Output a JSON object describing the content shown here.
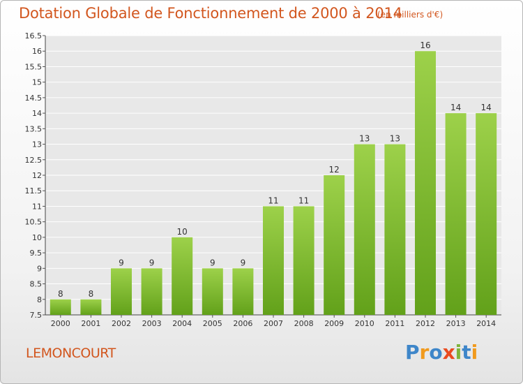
{
  "header": {
    "title": "Dotation Globale de Fonctionnement de 2000 à 2014",
    "unit": "(en milliers d'€)"
  },
  "footer": {
    "commune": "LEMONCOURT",
    "brand": "Proxiti"
  },
  "colors": {
    "title": "#d2561e",
    "bar_light": "#9dd14a",
    "bar_dark": "#62a11a",
    "brand_letters": [
      "#3e86c9",
      "#f19a1d",
      "#3e86c9",
      "#ea4a1f",
      "#7eb43a",
      "#3e86c9",
      "#f19a1d"
    ]
  },
  "chart_data": {
    "type": "bar",
    "categories": [
      "2000",
      "2001",
      "2002",
      "2003",
      "2004",
      "2005",
      "2006",
      "2007",
      "2008",
      "2009",
      "2010",
      "2011",
      "2012",
      "2013",
      "2014"
    ],
    "values": [
      8,
      8,
      9,
      9,
      10,
      9,
      9,
      11,
      11,
      12,
      13,
      13,
      16,
      14,
      14
    ],
    "data_labels": [
      "8",
      "8",
      "9",
      "9",
      "10",
      "9",
      "9",
      "11",
      "11",
      "12",
      "13",
      "13",
      "16",
      "14",
      "14"
    ],
    "ylim": [
      7.5,
      16.5
    ],
    "yticks": [
      7.5,
      8,
      8.5,
      9,
      9.5,
      10,
      10.5,
      11,
      11.5,
      12,
      12.5,
      13,
      13.5,
      14,
      14.5,
      15,
      15.5,
      16,
      16.5
    ],
    "ytick_labels": [
      "7.5",
      "8",
      "8.5",
      "9",
      "9.5",
      "10",
      "10.5",
      "11",
      "11.5",
      "12",
      "12.5",
      "13",
      "13.5",
      "14",
      "14.5",
      "15",
      "15.5",
      "16",
      "16.5"
    ],
    "grid": true,
    "legend": "none"
  }
}
